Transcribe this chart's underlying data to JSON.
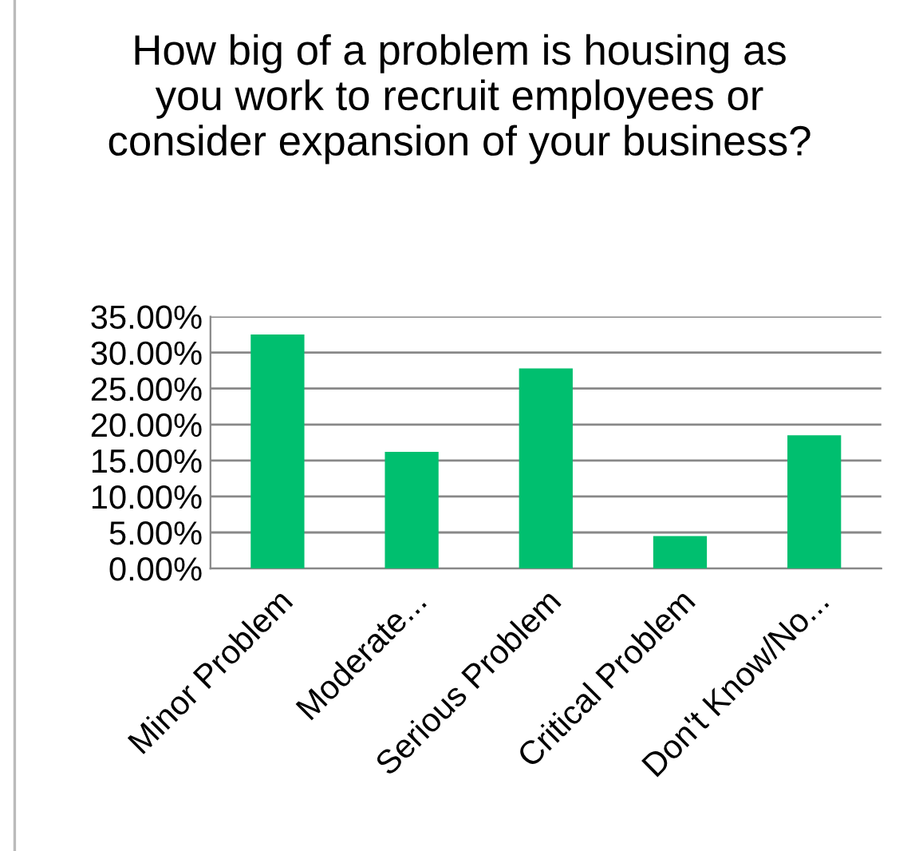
{
  "chart_data": {
    "type": "bar",
    "title": "How big of a problem is housing as you work to recruit employees or consider expansion of your business?",
    "categories": [
      "Minor Problem",
      "Moderate...",
      "Serious Problem",
      "Critical Problem",
      "Don't Know/No..."
    ],
    "values": [
      32.5,
      16.2,
      27.8,
      4.5,
      18.5
    ],
    "color": "#00bf6f",
    "ylim": [
      0,
      35
    ],
    "yticks": [
      {
        "value": 0,
        "label": "0.00%"
      },
      {
        "value": 5,
        "label": "5.00%"
      },
      {
        "value": 10,
        "label": "10.00%"
      },
      {
        "value": 15,
        "label": "15.00%"
      },
      {
        "value": 20,
        "label": "20.00%"
      },
      {
        "value": 25,
        "label": "25.00%"
      },
      {
        "value": 30,
        "label": "30.00%"
      },
      {
        "value": 35,
        "label": "35.00%"
      }
    ],
    "grid": "y"
  }
}
